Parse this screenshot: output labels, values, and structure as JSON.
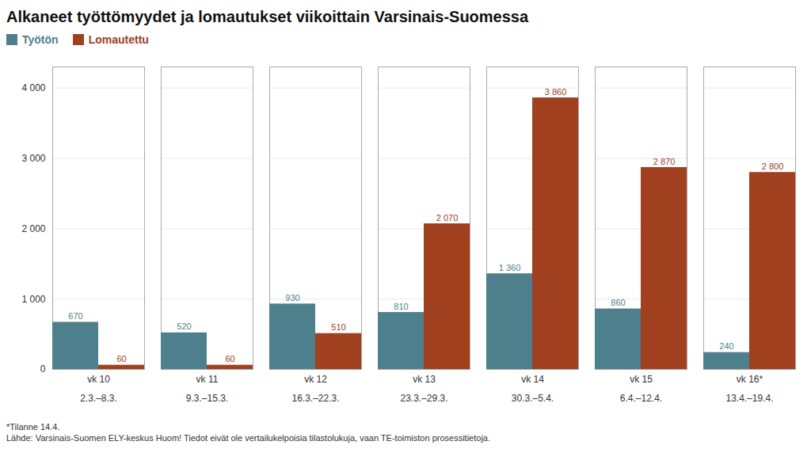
{
  "chart_data": {
    "type": "bar",
    "title": "Alkaneet työttömyydet ja lomautukset viikoittain Varsinais-Suomessa",
    "categories": [
      "vk 10\n\n2.3.–8.3.",
      "vk 11\n\n9.3.–15.3.",
      "vk 12\n\n16.3.–22.3.",
      "vk 13\n\n23.3.–29.3.",
      "vk 14\n\n30.3.–5.4.",
      "vk 15\n\n6.4.–12.4.",
      "vk 16*\n\n13.4.–19.4."
    ],
    "series": [
      {
        "name": "Työtön",
        "color": "#4e7f8d",
        "values": [
          670,
          520,
          930,
          810,
          1360,
          860,
          240
        ],
        "value_labels": [
          "670",
          "520",
          "930",
          "810",
          "1 360",
          "860",
          "240"
        ]
      },
      {
        "name": "Lomautettu",
        "color": "#a0401e",
        "values": [
          60,
          60,
          510,
          2070,
          3860,
          2870,
          2800
        ],
        "value_labels": [
          "60",
          "60",
          "510",
          "2 070",
          "3 860",
          "2 870",
          "2 800"
        ]
      }
    ],
    "ylim": [
      0,
      4300
    ],
    "yticks": [
      0,
      {
        "value": 1000,
        "label": "1 000"
      },
      {
        "value": 2000,
        "label": "2 000"
      },
      {
        "value": 3000,
        "label": "3 000"
      },
      {
        "value": 4000,
        "label": "4 000"
      }
    ],
    "grid": true,
    "legend": "upper left",
    "data_labels": true,
    "annotations": [
      "*Tilanne 14.4.",
      "Lähde: Varsinais-Suomen ELY-keskus  Huom! Tiedot eivät ole vertailukelpoisia tilastolukuja, vaan TE-toimiston prosessitietoja."
    ]
  }
}
